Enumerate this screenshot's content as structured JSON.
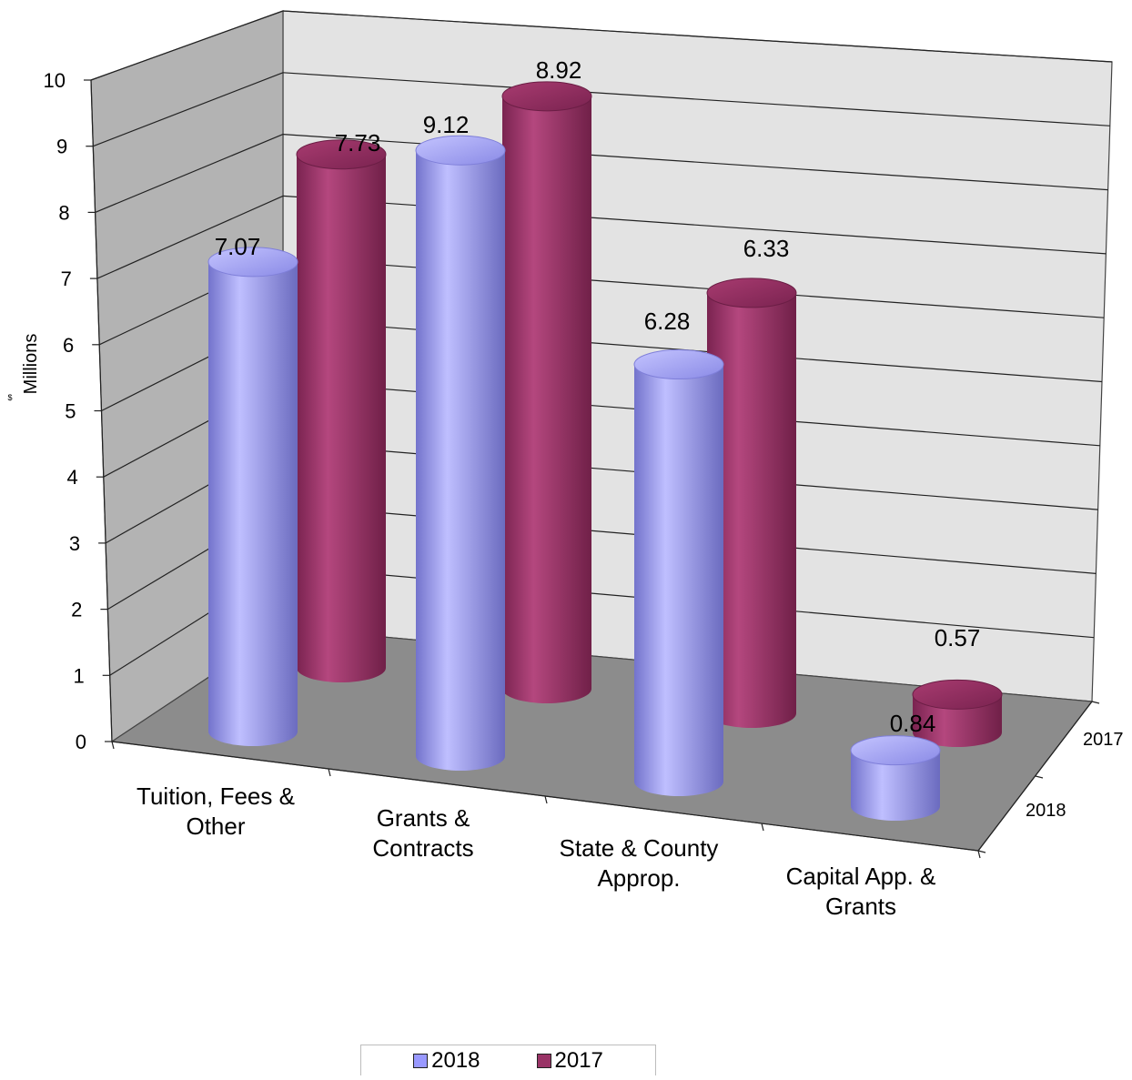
{
  "chart_data": {
    "type": "bar",
    "categories": [
      "Tuition, Fees & Other",
      "Grants & Contracts",
      "State & County Approp.",
      "Capital App. & Grants"
    ],
    "category_lines": [
      [
        "Tuition, Fees &",
        "Other"
      ],
      [
        "Grants &",
        "Contracts"
      ],
      [
        "State & County",
        "Approp."
      ],
      [
        "Capital App. &",
        "Grants"
      ]
    ],
    "series": [
      {
        "name": "2018",
        "values": [
          7.07,
          9.12,
          6.28,
          0.84
        ],
        "color": "#9999ff"
      },
      {
        "name": "2017",
        "values": [
          7.73,
          8.92,
          6.33,
          0.57
        ],
        "color": "#993366"
      }
    ],
    "data_labels": [
      [
        "7.07",
        "9.12",
        "6.28",
        "0.84"
      ],
      [
        "7.73",
        "8.92",
        "6.33",
        "0.57"
      ]
    ],
    "ylabel": "Millions",
    "ylabel_prefix": "$",
    "ylim": [
      0,
      10
    ],
    "y_ticks": [
      "0",
      "1",
      "2",
      "3",
      "4",
      "5",
      "6",
      "7",
      "8",
      "9",
      "10"
    ],
    "depth_labels": [
      "2017",
      "2018"
    ],
    "grid": true,
    "legend_position": "bottom",
    "style": "3d-cylinder"
  }
}
